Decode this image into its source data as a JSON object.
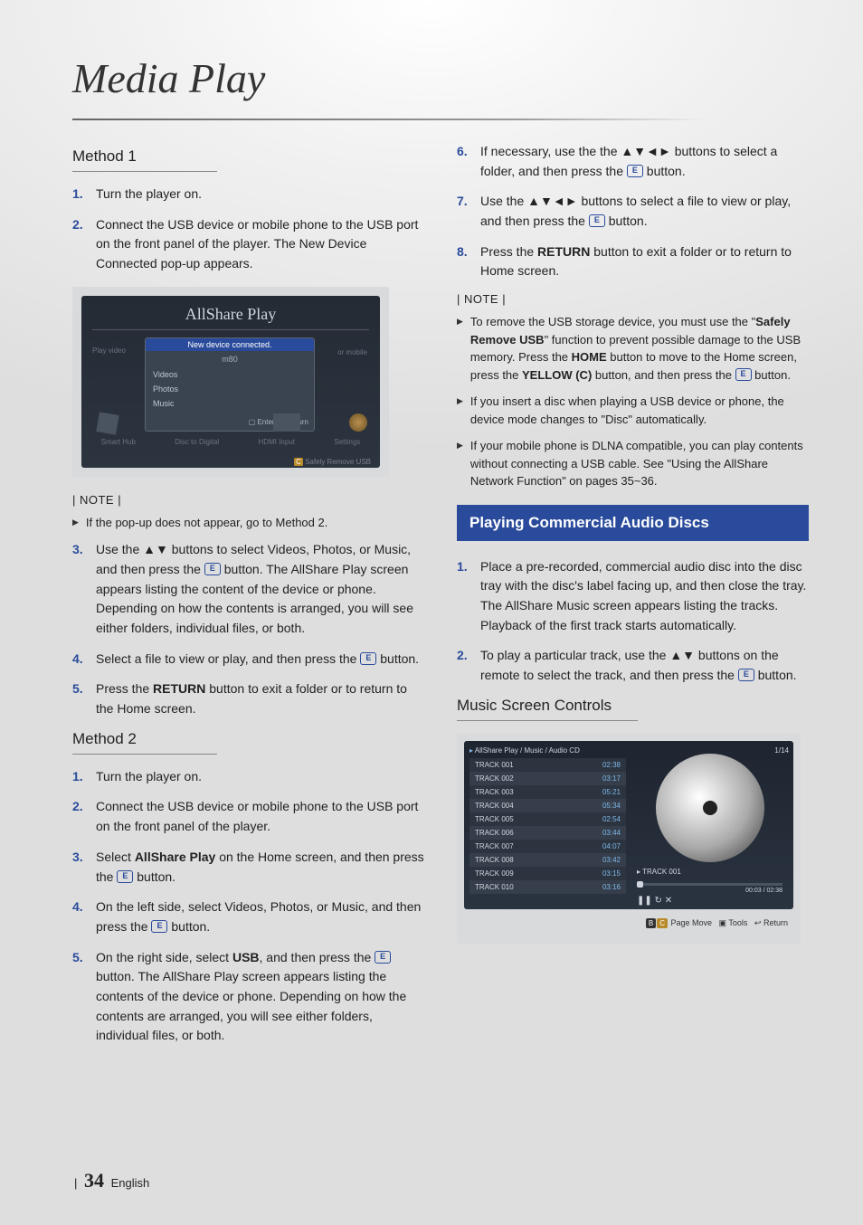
{
  "page_title": "Media Play",
  "page_number": "34",
  "page_lang": "English",
  "enter_icon_glyph": "E",
  "left": {
    "method1_title": "Method 1",
    "method1_steps": [
      "Turn the player on.",
      "Connect the USB device or mobile phone to the USB port on the front panel of the player. The New Device Connected pop-up appears."
    ],
    "allshare": {
      "title": "AllShare Play",
      "side_label": "Play video",
      "popup_header": "New device connected.",
      "device": "m80",
      "options": [
        "Videos",
        "Photos",
        "Music"
      ],
      "enter": "Enter",
      "return": "Return",
      "bottom": [
        "Smart Hub",
        "Disc to Digital",
        "HDMI Input",
        "Settings"
      ],
      "remove": "Safely Remove USB",
      "or_mobile": "or mobile"
    },
    "note_label": "| NOTE |",
    "notes1": [
      "If the pop-up does not appear, go to Method 2."
    ],
    "method1_steps_b": [
      {
        "n": "3.",
        "t": "Use the ▲▼ buttons to select Videos, Photos, or Music, and then press the {E} button. The AllShare Play screen appears listing the content of the device or phone. Depending on how the contents is arranged, you will see either folders, individual files, or both."
      },
      {
        "n": "4.",
        "t": "Select a file to view or play, and then press the {E} button."
      },
      {
        "n": "5.",
        "t": "Press the <b>RETURN</b> button to exit a folder or to return to the Home screen."
      }
    ],
    "method2_title": "Method 2",
    "method2_steps": [
      {
        "n": "1.",
        "t": "Turn the player on."
      },
      {
        "n": "2.",
        "t": "Connect the USB device or mobile phone to the USB port on the front panel of the player."
      },
      {
        "n": "3.",
        "t": "Select <b>AllShare Play</b> on the Home screen, and then press the {E} button."
      },
      {
        "n": "4.",
        "t": "On the left side, select Videos, Photos, or Music, and then press the {E} button."
      },
      {
        "n": "5.",
        "t": "On the right side, select <b>USB</b>, and then press the {E} button. The AllShare Play screen appears listing the contents of the device or phone. Depending on how the contents are arranged, you will see either folders, individual files, or both."
      }
    ]
  },
  "right": {
    "cont_steps": [
      {
        "n": "6.",
        "t": "If necessary, use the the ▲▼◄► buttons to select a folder, and then press the {E} button."
      },
      {
        "n": "7.",
        "t": "Use the ▲▼◄► buttons to select a file to view or play, and then press the {E} button."
      },
      {
        "n": "8.",
        "t": "Press the <b>RETURN</b> button to exit a folder or to return to Home screen."
      }
    ],
    "note_label": "| NOTE |",
    "notes": [
      "To remove the USB storage device, you must use the \"<b>Safely Remove USB</b>\" function to prevent possible damage to the USB memory. Press the <b>HOME</b> button to move to the Home screen, press the <b>YELLOW (C)</b> button, and then press the {E} button.",
      "If you insert a disc when playing a USB device or phone, the device mode changes to \"Disc\" automatically.",
      "If your mobile phone is DLNA compatible, you can play contents without connecting a USB cable. See \"Using the AllShare Network Function\" on pages 35~36."
    ],
    "banner": "Playing Commercial Audio Discs",
    "audio_steps": [
      {
        "n": "1.",
        "t": "Place a pre-recorded, commercial audio disc into the disc tray with the disc's label facing up, and then close the tray. The AllShare Music screen appears listing the tracks. Playback of the first track starts automatically."
      },
      {
        "n": "2.",
        "t": "To play a particular track, use the ▲▼ buttons on the remote to select the track, and then press the {E} button."
      }
    ],
    "music_title": "Music Screen Controls",
    "music": {
      "header": "AllShare Play / Music /     Audio CD",
      "count": "1/14",
      "tracks": [
        {
          "name": "TRACK 001",
          "time": "02:38"
        },
        {
          "name": "TRACK 002",
          "time": "03:17"
        },
        {
          "name": "TRACK 003",
          "time": "05:21"
        },
        {
          "name": "TRACK 004",
          "time": "05:34"
        },
        {
          "name": "TRACK 005",
          "time": "02:54"
        },
        {
          "name": "TRACK 006",
          "time": "03:44"
        },
        {
          "name": "TRACK 007",
          "time": "04:07"
        },
        {
          "name": "TRACK 008",
          "time": "03:42"
        },
        {
          "name": "TRACK 009",
          "time": "03:15"
        },
        {
          "name": "TRACK 010",
          "time": "03:16"
        }
      ],
      "now_playing": "TRACK 001",
      "elapsed": "00:03 / 02:38",
      "controls": "❚❚   ↻   ✕",
      "footer_pagemove": "Page Move",
      "footer_tools": "Tools",
      "footer_return": "Return"
    }
  }
}
